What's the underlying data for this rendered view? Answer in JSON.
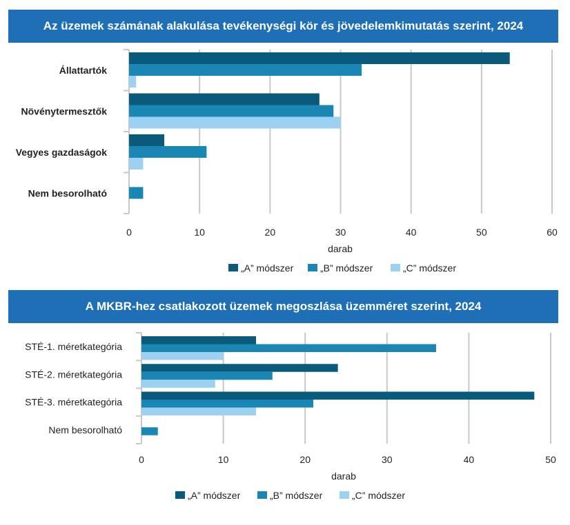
{
  "colors": {
    "A": "#0a5a7c",
    "B": "#1a86b3",
    "C": "#9dd1f1",
    "title_bg": "#1f6fb6"
  },
  "chart_data": [
    {
      "type": "bar",
      "orientation": "horizontal",
      "title": "Az üzemek számának alakulása tevékenységi kör és jövedelemkimutatás szerint, 2024",
      "categories": [
        "Állattartók",
        "Növénytermesztők",
        "Vegyes gazdaságok",
        "Nem besorolható"
      ],
      "series": [
        {
          "name": "„A” módszer",
          "values": [
            54,
            27,
            5,
            0
          ]
        },
        {
          "name": "„B” módszer",
          "values": [
            33,
            29,
            11,
            2
          ]
        },
        {
          "name": "„C” módszer",
          "values": [
            1,
            30,
            2,
            0
          ]
        }
      ],
      "xlabel": "darab",
      "xlim": [
        0,
        60
      ],
      "xticks": [
        0,
        10,
        20,
        30,
        40,
        50,
        60
      ],
      "grid": true,
      "legend": "bottom"
    },
    {
      "type": "bar",
      "orientation": "horizontal",
      "title": "A MKBR-hez csatlakozott üzemek megoszlása üzemméret szerint, 2024",
      "categories": [
        "STÉ-1. méretkategória",
        "STÉ-2. méretkategória",
        "STÉ-3. méretkategória",
        "Nem besorolható"
      ],
      "series": [
        {
          "name": "„A” módszer",
          "values": [
            14,
            24,
            48,
            0
          ]
        },
        {
          "name": "„B” módszer",
          "values": [
            36,
            16,
            21,
            2
          ]
        },
        {
          "name": "„C” módszer",
          "values": [
            10,
            9,
            14,
            0
          ]
        }
      ],
      "xlabel": "darab",
      "xlim": [
        0,
        50
      ],
      "xticks": [
        0,
        10,
        20,
        30,
        40,
        50
      ],
      "grid": true,
      "legend": "bottom"
    }
  ]
}
